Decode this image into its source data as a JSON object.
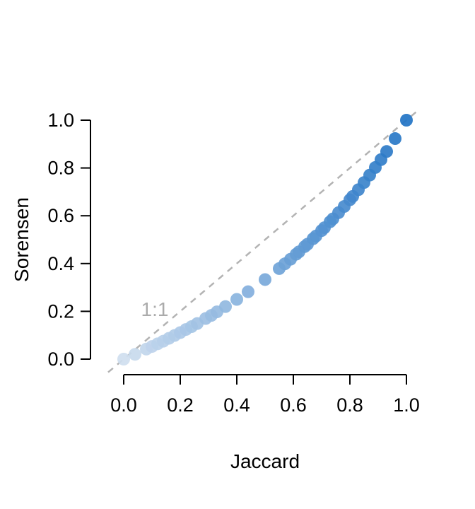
{
  "chart_data": {
    "type": "scatter",
    "title": "",
    "xlabel": "Jaccard",
    "ylabel": "Sorensen",
    "xlim": [
      0,
      1
    ],
    "ylim": [
      0,
      1
    ],
    "grid": false,
    "legend": false,
    "x_tick_values": [
      0.0,
      0.2,
      0.4,
      0.6,
      0.8,
      1.0
    ],
    "x_tick_labels": [
      "0.0",
      "0.2",
      "0.4",
      "0.6",
      "0.8",
      "1.0"
    ],
    "y_tick_values": [
      0.0,
      0.2,
      0.4,
      0.6,
      0.8,
      1.0
    ],
    "y_tick_labels": [
      "0.0",
      "0.2",
      "0.4",
      "0.6",
      "0.8",
      "1.0"
    ],
    "reference_line": {
      "label": "1:1",
      "from": [
        -0.055,
        -0.055
      ],
      "to": [
        1.045,
        1.045
      ],
      "style": "dashed",
      "color": "#b3b3b3",
      "label_color": "#ababab",
      "label_position": [
        0.11,
        0.18
      ]
    },
    "points": {
      "x": [
        0.0,
        0.04,
        0.08,
        0.1,
        0.12,
        0.14,
        0.16,
        0.18,
        0.2,
        0.22,
        0.24,
        0.26,
        0.29,
        0.31,
        0.33,
        0.36,
        0.4,
        0.44,
        0.5,
        0.55,
        0.57,
        0.59,
        0.61,
        0.62,
        0.64,
        0.65,
        0.67,
        0.68,
        0.7,
        0.71,
        0.73,
        0.74,
        0.76,
        0.78,
        0.8,
        0.81,
        0.83,
        0.85,
        0.87,
        0.89,
        0.91,
        0.93,
        0.96,
        1.0
      ],
      "y": [
        0.0,
        0.02,
        0.042,
        0.053,
        0.064,
        0.075,
        0.087,
        0.099,
        0.111,
        0.124,
        0.136,
        0.149,
        0.17,
        0.183,
        0.198,
        0.22,
        0.25,
        0.282,
        0.333,
        0.379,
        0.399,
        0.418,
        0.439,
        0.449,
        0.471,
        0.481,
        0.504,
        0.515,
        0.538,
        0.55,
        0.575,
        0.587,
        0.613,
        0.639,
        0.667,
        0.681,
        0.709,
        0.739,
        0.77,
        0.802,
        0.835,
        0.869,
        0.923,
        1.0
      ]
    },
    "point_color_scale": {
      "low": "#cfdeef",
      "high": "#2274c5"
    },
    "axis_color": "#000000",
    "background": "#ffffff"
  }
}
